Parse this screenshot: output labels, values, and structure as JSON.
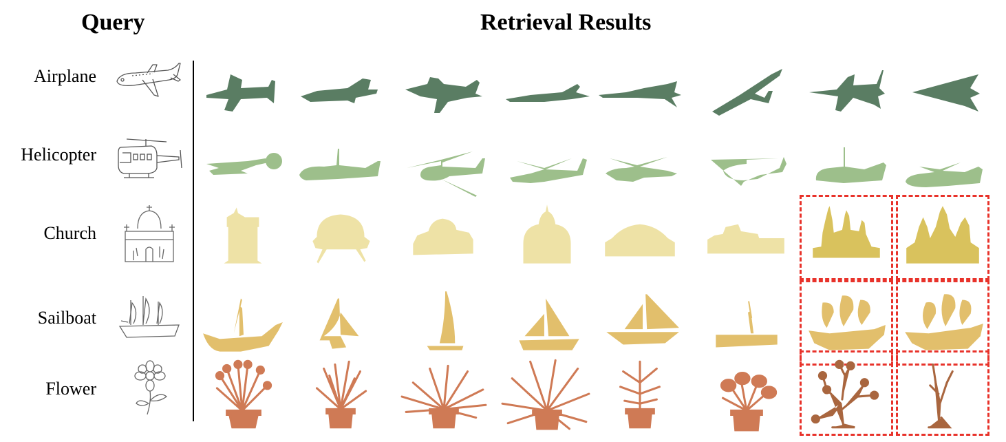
{
  "headers": {
    "query": "Query",
    "results": "Retrieval Results"
  },
  "rows": [
    {
      "label": "Airplane",
      "category": "airplane",
      "color": "#5a7d63",
      "wrong": []
    },
    {
      "label": "Helicopter",
      "category": "helicopter",
      "color": "#9dbf8b",
      "wrong": []
    },
    {
      "label": "Church",
      "category": "church",
      "color": "#eee2a6",
      "wrong_color": "#d9c25d",
      "wrong": [
        6,
        7
      ]
    },
    {
      "label": "Sailboat",
      "category": "sailboat",
      "color": "#e2bf6c",
      "wrong": [
        6,
        7
      ]
    },
    {
      "label": "Flower",
      "category": "flower",
      "color": "#cf7a55",
      "wrong_color": "#a9663f",
      "wrong": [
        6,
        7
      ]
    }
  ],
  "colors": {
    "wrong_box": "#e8322a",
    "sketch": "#555555",
    "divider": "#000000"
  },
  "results_per_row": 8
}
